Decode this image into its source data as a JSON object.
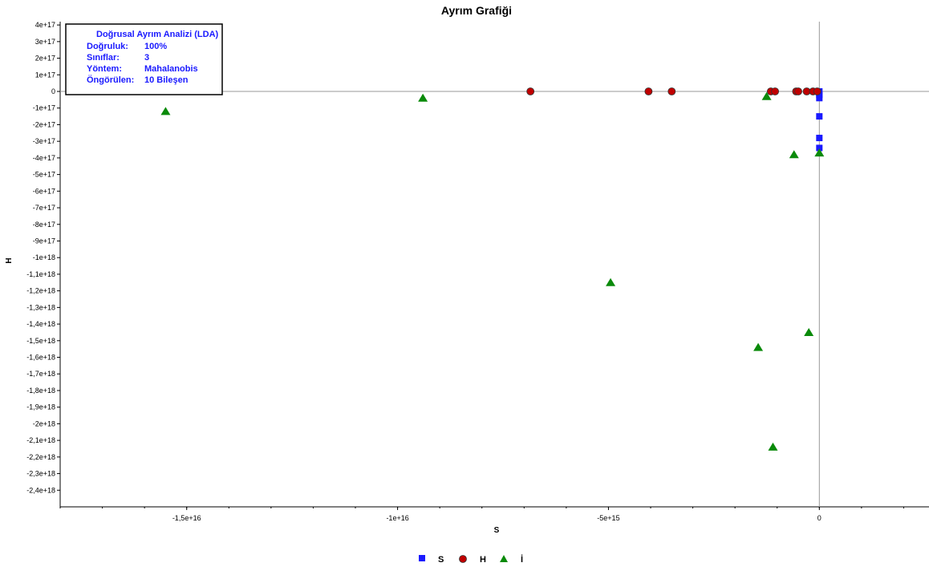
{
  "chart_data": {
    "type": "scatter",
    "title": "Ayrım Grafiği",
    "xlabel": "S",
    "ylabel": "H",
    "xlim": [
      -1.8e+16,
      2600000000000000.0
    ],
    "ylim": [
      -2.5e+18,
      4.2e+17
    ],
    "x_ticks": [
      -1.5e+16,
      -1e+16,
      -5000000000000000.0,
      0
    ],
    "x_tick_labels": [
      "-1,5e+16",
      "-1e+16",
      "-5e+15",
      "0"
    ],
    "y_ticks": [
      4e+17,
      3e+17,
      2e+17,
      1e+17,
      0,
      -1e+17,
      -2e+17,
      -3e+17,
      -4e+17,
      -5e+17,
      -6e+17,
      -7e+17,
      -8e+17,
      -9e+17,
      -1e+18,
      -1.1e+18,
      -1.2e+18,
      -1.3e+18,
      -1.4e+18,
      -1.5e+18,
      -1.6e+18,
      -1.7e+18,
      -1.8e+18,
      -1.9e+18,
      -2e+18,
      -2.1e+18,
      -2.2e+18,
      -2.3e+18,
      -2.4e+18
    ],
    "y_tick_labels": [
      "4e+17",
      "3e+17",
      "2e+17",
      "1e+17",
      "0",
      "-1e+17",
      "-2e+17",
      "-3e+17",
      "-4e+17",
      "-5e+17",
      "-6e+17",
      "-7e+17",
      "-8e+17",
      "-9e+17",
      "-1e+18",
      "-1,1e+18",
      "-1,2e+18",
      "-1,3e+18",
      "-1,4e+18",
      "-1,5e+18",
      "-1,6e+18",
      "-1,7e+18",
      "-1,8e+18",
      "-1,9e+18",
      "-2e+18",
      "-2,1e+18",
      "-2,2e+18",
      "-2,3e+18",
      "-2,4e+18"
    ],
    "grid": false,
    "legend_position": "bottom-center",
    "series": [
      {
        "name": "S",
        "marker": "square",
        "color": "#1a1aff",
        "points": [
          {
            "x": 0,
            "y": 0
          },
          {
            "x": 0,
            "y": -2e+16
          },
          {
            "x": 0,
            "y": -4e+16
          },
          {
            "x": 0,
            "y": -1.5e+17
          },
          {
            "x": 0,
            "y": -2.8e+17
          },
          {
            "x": 0,
            "y": -3.4e+17
          }
        ]
      },
      {
        "name": "H",
        "marker": "circle",
        "color": "#c00000",
        "points": [
          {
            "x": -6850000000000000.0,
            "y": 0
          },
          {
            "x": -4050000000000000.0,
            "y": 0
          },
          {
            "x": -3500000000000000.0,
            "y": 0
          },
          {
            "x": -1150000000000000.0,
            "y": 0
          },
          {
            "x": -1050000000000000.0,
            "y": 0
          },
          {
            "x": -550000000000000.0,
            "y": 0
          },
          {
            "x": -500000000000000.0,
            "y": 0
          },
          {
            "x": -300000000000000.0,
            "y": 0
          },
          {
            "x": -150000000000000.0,
            "y": 0
          },
          {
            "x": -50000000000000.0,
            "y": 0
          }
        ]
      },
      {
        "name": "İ",
        "marker": "triangle",
        "color": "#0a8a0a",
        "points": [
          {
            "x": -1.55e+16,
            "y": -1.2e+17
          },
          {
            "x": -9400000000000000.0,
            "y": -4e+16
          },
          {
            "x": -1250000000000000.0,
            "y": -3e+16
          },
          {
            "x": -600000000000000.0,
            "y": -3.8e+17
          },
          {
            "x": 0,
            "y": -3.7e+17
          },
          {
            "x": -4950000000000000.0,
            "y": -1.15e+18
          },
          {
            "x": -250000000000000.0,
            "y": -1.45e+18
          },
          {
            "x": -1450000000000000.0,
            "y": -1.54e+18
          },
          {
            "x": -1100000000000000.0,
            "y": -2.14e+18
          }
        ]
      }
    ]
  },
  "info_box": {
    "line1": "Doğrusal Ayrım Analizi (LDA)",
    "rows": [
      {
        "label": "Doğruluk:",
        "value": "100%"
      },
      {
        "label": "Sınıflar:",
        "value": "3"
      },
      {
        "label": "Yöntem:",
        "value": "Mahalanobis"
      },
      {
        "label": "Öngörülen:",
        "value": "10 Bileşen"
      }
    ]
  },
  "colors": {
    "axis": "#000000",
    "zero_line": "#999999",
    "info_text": "#1a1aff",
    "marker_outline": "#333333"
  }
}
